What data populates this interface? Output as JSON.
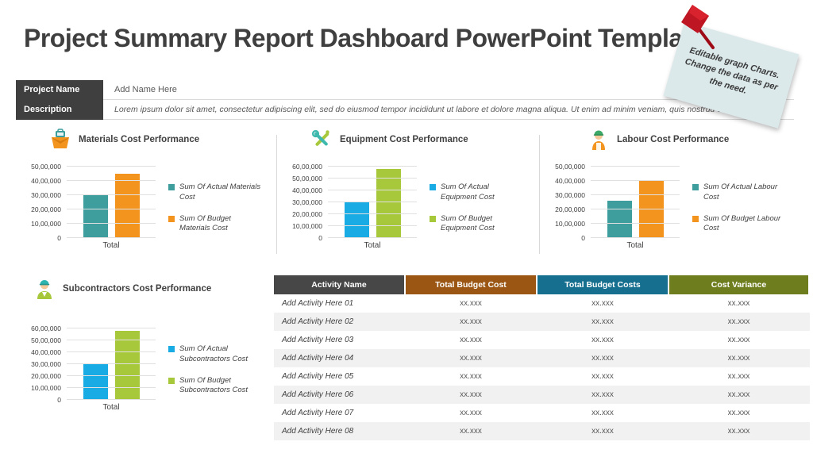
{
  "page_title": "Project Summary Report Dashboard PowerPoint Template",
  "sticky_note": {
    "text": "Editable graph Charts. Change the data as per the need.",
    "bg_color": "#dce9eb",
    "pin_color": "#be1622"
  },
  "project_info": {
    "name_label": "Project Name",
    "name_value": "Add Name Here",
    "description_label": "Description",
    "description_value": "Lorem ipsum dolor sit amet, consectetur adipiscing elit, sed do eiusmod tempor incididunt ut labore et dolore magna aliqua. Ut enim ad minim veniam, quis nostrud exercitation"
  },
  "icons": [
    "toolbox-icon",
    "crossed-tools-icon",
    "construction-worker-icon",
    "contractor-icon"
  ],
  "chart_data": [
    {
      "type": "bar",
      "title": "Materials Cost Performance",
      "icon": "toolbox-icon",
      "categories": [
        "Total"
      ],
      "ymax": 5000000,
      "ticks": [
        "50,00,000",
        "40,00,000",
        "30,00,000",
        "20,00,000",
        "10,00,000",
        "0"
      ],
      "grid": true,
      "legend_position": "right",
      "series": [
        {
          "name": "Sum Of Actual Materials Cost",
          "value": 3000000,
          "color": "#3e9e9e"
        },
        {
          "name": "Sum Of Budget Materials Cost",
          "value": 4500000,
          "color": "#f2941e"
        }
      ]
    },
    {
      "type": "bar",
      "title": "Equipment Cost Performance",
      "icon": "crossed-tools-icon",
      "categories": [
        "Total"
      ],
      "ymax": 6000000,
      "ticks": [
        "60,00,000",
        "50,00,000",
        "40,00,000",
        "30,00,000",
        "20,00,000",
        "10,00,000",
        "0"
      ],
      "grid": true,
      "legend_position": "right",
      "series": [
        {
          "name": "Sum Of Actual Equipment Cost",
          "value": 3100000,
          "color": "#19abe3"
        },
        {
          "name": "Sum Of Budget Equipment Cost",
          "value": 5800000,
          "color": "#a7c83b"
        }
      ]
    },
    {
      "type": "bar",
      "title": "Labour Cost Performance",
      "icon": "construction-worker-icon",
      "categories": [
        "Total"
      ],
      "ymax": 5000000,
      "ticks": [
        "50,00,000",
        "40,00,000",
        "30,00,000",
        "20,00,000",
        "10,00,000",
        "0"
      ],
      "grid": true,
      "legend_position": "right",
      "series": [
        {
          "name": "Sum Of Actual Labour Cost",
          "value": 2600000,
          "color": "#3e9e9e"
        },
        {
          "name": "Sum Of Budget Labour Cost",
          "value": 4000000,
          "color": "#f2941e"
        }
      ]
    },
    {
      "type": "bar",
      "title": "Subcontractors Cost Performance",
      "icon": "contractor-icon",
      "categories": [
        "Total"
      ],
      "ymax": 6000000,
      "ticks": [
        "60,00,000",
        "50,00,000",
        "40,00,000",
        "30,00,000",
        "20,00,000",
        "10,00,000",
        "0"
      ],
      "grid": true,
      "legend_position": "right",
      "series": [
        {
          "name": "Sum Of Actual Subcontractors Cost",
          "value": 3100000,
          "color": "#19abe3"
        },
        {
          "name": "Sum Of Budget Subcontractors Cost",
          "value": 5800000,
          "color": "#a7c83b"
        }
      ]
    }
  ],
  "table": {
    "headers": [
      {
        "label": "Activity Name",
        "color": "#474747"
      },
      {
        "label": "Total Budget Cost",
        "color": "#9a5612"
      },
      {
        "label": "Total Budget Costs",
        "color": "#176f8f"
      },
      {
        "label": "Cost Variance",
        "color": "#6e7e1f"
      }
    ],
    "rows": [
      {
        "activity": "Add Activity Here 01",
        "values": [
          "xx.xxx",
          "xx.xxx",
          "xx.xxx"
        ]
      },
      {
        "activity": "Add Activity Here 02",
        "values": [
          "xx.xxx",
          "xx.xxx",
          "xx.xxx"
        ]
      },
      {
        "activity": "Add Activity Here 03",
        "values": [
          "xx.xxx",
          "xx.xxx",
          "xx.xxx"
        ]
      },
      {
        "activity": "Add Activity Here 04",
        "values": [
          "xx.xxx",
          "xx.xxx",
          "xx.xxx"
        ]
      },
      {
        "activity": "Add Activity Here 05",
        "values": [
          "xx.xxx",
          "xx.xxx",
          "xx.xxx"
        ]
      },
      {
        "activity": "Add Activity Here 06",
        "values": [
          "xx.xxx",
          "xx.xxx",
          "xx.xxx"
        ]
      },
      {
        "activity": "Add Activity Here 07",
        "values": [
          "xx.xxx",
          "xx.xxx",
          "xx.xxx"
        ]
      },
      {
        "activity": "Add Activity Here 08",
        "values": [
          "xx.xxx",
          "xx.xxx",
          "xx.xxx"
        ]
      }
    ]
  }
}
